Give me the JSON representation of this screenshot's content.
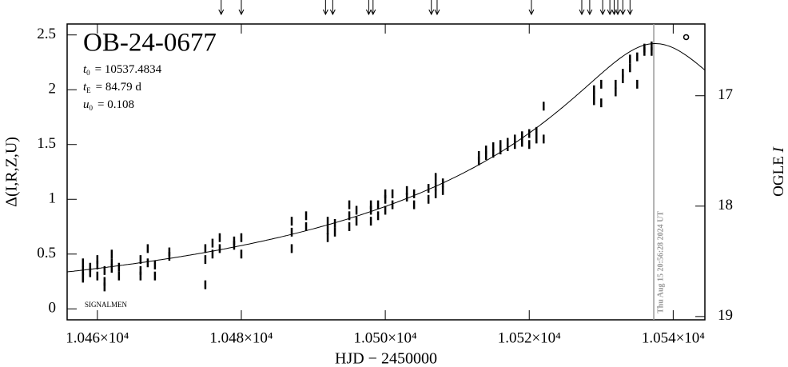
{
  "chart_data": {
    "type": "scatter",
    "title": "OB-24-0677",
    "params": [
      {
        "symbol": "t",
        "subscript": "0",
        "text": "= 10537.4834"
      },
      {
        "symbol": "t",
        "subscript": "E",
        "text": "= 84.79 d"
      },
      {
        "symbol": "u",
        "subscript": "0",
        "text": "= 0.108"
      }
    ],
    "model": {
      "t0": 10537.4834,
      "tE": 84.79,
      "u0": 0.108
    },
    "x_label": "HJD − 2450000",
    "y_label": "Δ(I,R,Z,U)",
    "y2_label": {
      "text": "OGLE ",
      "italic": "I"
    },
    "corner_note": "SIGNALMEN",
    "now_line": {
      "x": 10537.3,
      "label": "Thu Aug 15 20:56:28 2024 UT",
      "color": "#999999"
    },
    "arrows_x": [
      10477.2,
      10480,
      10491.7,
      10492.7,
      10497.7,
      10498.3,
      10506.4,
      10507.2,
      10520.3,
      10527.3,
      10528.4,
      10530.2,
      10531.2,
      10531.8,
      10532.3,
      10533,
      10534
    ],
    "xlim": [
      10455.8,
      10544.4
    ],
    "ylim": [
      -0.1,
      2.6
    ],
    "y2lim": [
      19.03,
      16.35
    ],
    "xticks": [
      {
        "value": 10460,
        "label": "1.046×10⁴"
      },
      {
        "value": 10480,
        "label": "1.048×10⁴"
      },
      {
        "value": 10500,
        "label": "1.050×10⁴"
      },
      {
        "value": 10520,
        "label": "1.052×10⁴"
      },
      {
        "value": 10540,
        "label": "1.054×10⁴"
      }
    ],
    "yticks": [
      0,
      0.5,
      1,
      1.5,
      2,
      2.5
    ],
    "y2ticks": [
      17,
      18,
      19
    ],
    "series": [
      {
        "name": "data",
        "color": "#000000",
        "yerr": 0.04,
        "x": [
          10458,
          10458,
          10458,
          10458,
          10459,
          10459,
          10460,
          10460,
          10460,
          10461,
          10461,
          10461,
          10462,
          10462,
          10462,
          10463,
          10463,
          10466,
          10466,
          10466,
          10467,
          10467,
          10468,
          10468,
          10470,
          10470,
          10475,
          10475,
          10475,
          10476,
          10476,
          10477,
          10477,
          10479,
          10479,
          10480,
          10480,
          10487,
          10487,
          10487,
          10489,
          10489,
          10492,
          10492,
          10492,
          10493,
          10493,
          10495,
          10495,
          10495,
          10496,
          10496,
          10498,
          10498,
          10498,
          10499,
          10499,
          10500,
          10500,
          10500,
          10501,
          10501,
          10503,
          10503,
          10504,
          10504,
          10506,
          10506,
          10507,
          10507,
          10507,
          10508,
          10508,
          10513,
          10513,
          10514,
          10514,
          10515,
          10515,
          10516,
          10516,
          10517,
          10517,
          10518,
          10518,
          10519,
          10519,
          10520,
          10520,
          10521,
          10521,
          10522,
          10522,
          10529,
          10529,
          10529,
          10530,
          10530,
          10532,
          10532,
          10533,
          10533,
          10534,
          10534,
          10535,
          10535,
          10536,
          10536,
          10537,
          10537
        ],
        "y": [
          0.35,
          0.3,
          0.42,
          0.28,
          0.38,
          0.33,
          0.4,
          0.3,
          0.45,
          0.35,
          0.25,
          0.2,
          0.42,
          0.37,
          0.5,
          0.38,
          0.3,
          0.45,
          0.35,
          0.3,
          0.42,
          0.55,
          0.4,
          0.3,
          0.48,
          0.52,
          0.55,
          0.45,
          0.22,
          0.6,
          0.5,
          0.55,
          0.65,
          0.58,
          0.62,
          0.65,
          0.5,
          0.55,
          0.8,
          0.7,
          0.85,
          0.75,
          0.8,
          0.65,
          0.72,
          0.78,
          0.7,
          0.85,
          0.75,
          0.95,
          0.8,
          0.9,
          0.9,
          0.8,
          0.95,
          0.95,
          0.85,
          1.0,
          0.9,
          1.05,
          0.95,
          1.05,
          1.02,
          1.08,
          1.05,
          0.95,
          1.1,
          1.0,
          1.12,
          1.05,
          1.2,
          1.08,
          1.15,
          1.4,
          1.35,
          1.45,
          1.4,
          1.48,
          1.42,
          1.5,
          1.45,
          1.52,
          1.48,
          1.55,
          1.5,
          1.58,
          1.52,
          1.6,
          1.5,
          1.62,
          1.55,
          1.85,
          1.55,
          1.9,
          1.95,
          2.0,
          2.05,
          1.88,
          1.98,
          2.05,
          2.15,
          2.1,
          2.28,
          2.2,
          2.3,
          2.05,
          2.35,
          2.38,
          2.4,
          2.35
        ]
      },
      {
        "name": "ogle-point",
        "color": "#000000",
        "x": [
          10541.8
        ],
        "y": [
          2.48
        ]
      }
    ]
  }
}
